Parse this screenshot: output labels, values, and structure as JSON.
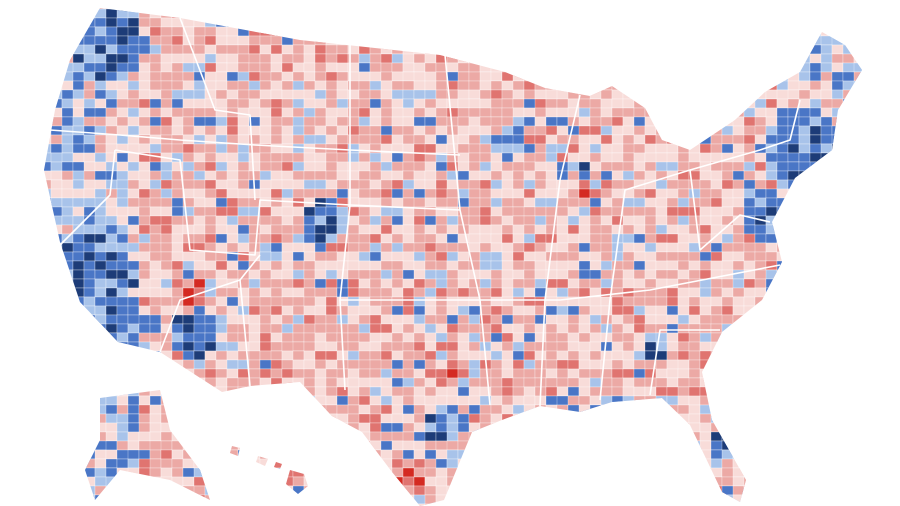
{
  "map": {
    "type": "choropleth",
    "color_scale": [
      "#1d3c78",
      "#4a76c6",
      "#a8c3ea",
      "#f8dcd9",
      "#eca9a5",
      "#e07470",
      "#d42a22"
    ],
    "background": "#ffffff",
    "border_color": "#ffffff"
  }
}
